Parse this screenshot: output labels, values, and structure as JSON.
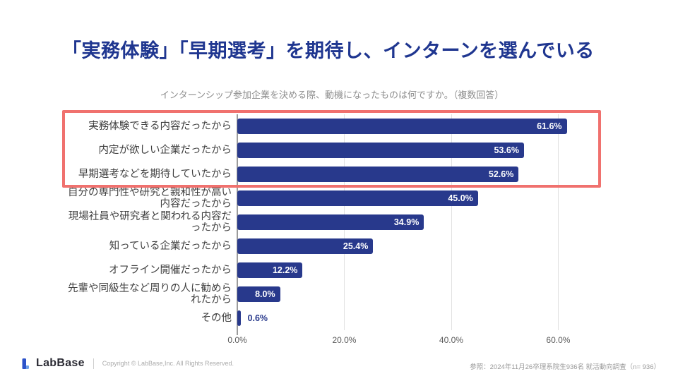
{
  "slide": {
    "title": "「実務体験」「早期選考」を期待し、インターンを選んでいる",
    "subtitle": "インターンシップ参加企業を決める際、動機になったものは何ですか。（複数回答）"
  },
  "chart_data": {
    "type": "bar",
    "orientation": "horizontal",
    "title": "インターンシップ参加企業を決める際、動機になったものは何ですか。（複数回答）",
    "categories": [
      "実務体験できる内容だったから",
      "内定が欲しい企業だったから",
      "早期選考などを期待していたから",
      "自分の専門性や研究と親和性が高い内容だったから",
      "現場社員や研究者と関われる内容だったから",
      "知っている企業だったから",
      "オフライン開催だったから",
      "先輩や同級生など周りの人に勧められたから",
      "その他"
    ],
    "values": [
      61.6,
      53.6,
      52.6,
      45.0,
      34.9,
      25.4,
      12.2,
      8.0,
      0.6
    ],
    "value_labels": [
      "61.6%",
      "53.6%",
      "52.6%",
      "45.0%",
      "34.9%",
      "25.4%",
      "12.2%",
      "8.0%",
      "0.6%"
    ],
    "xlabel": "",
    "ylabel": "",
    "xlim": [
      0,
      68
    ],
    "x_ticks": [
      "0.0%",
      "20.0%",
      "40.0%",
      "60.0%"
    ],
    "x_tick_values": [
      0,
      20,
      40,
      60
    ],
    "grid": true,
    "legend_position": "none",
    "bar_color": "#28398C",
    "highlight": {
      "rows": [
        0,
        1,
        2
      ],
      "color": "#F0716E"
    }
  },
  "footer": {
    "logo_text": "LabBase",
    "copyright": "Copyright ©  LabBase,Inc. All Rights Reserved.",
    "reference": "参照：2024年11月26卒理系院生936名  就活動向調査（n= 936）"
  },
  "colors": {
    "title": "#1F3690",
    "bar": "#28398C",
    "highlight_box": "#F0716E"
  }
}
